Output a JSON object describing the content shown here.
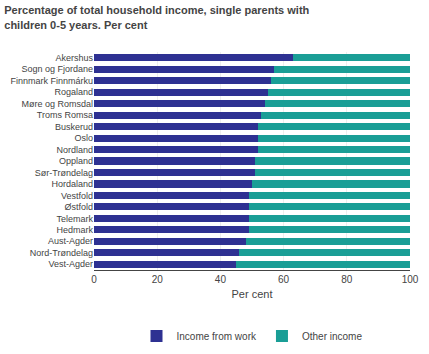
{
  "chart_data": {
    "type": "bar",
    "orientation": "horizontal",
    "stacked": true,
    "title": "Percentage of total household income, single parents with\nchildren 0-5 years. Per cent",
    "xlabel": "Per cent",
    "categories": [
      "Akershus",
      "Sogn og Fjordane",
      "Finnmark Finnmárku",
      "Rogaland",
      "Møre og Romsdal",
      "Troms Romsa",
      "Buskerud",
      "Oslo",
      "Nordland",
      "Oppland",
      "Sør-Trøndelag",
      "Hordaland",
      "Vestfold",
      "Østfold",
      "Telemark",
      "Hedmark",
      "Aust-Agder",
      "Nord-Trøndelag",
      "Vest-Agder"
    ],
    "series": [
      {
        "name": "Income from work",
        "color": "#2e3192",
        "values": [
          63,
          57,
          56,
          55,
          54,
          53,
          52,
          52,
          52,
          51,
          51,
          50,
          49,
          49,
          49,
          49,
          48,
          46,
          45
        ]
      },
      {
        "name": "Other income",
        "color": "#1a9e96",
        "values": [
          37,
          43,
          44,
          45,
          46,
          47,
          48,
          48,
          48,
          49,
          49,
          50,
          51,
          51,
          51,
          51,
          52,
          54,
          55
        ]
      }
    ],
    "xlim": [
      0,
      100
    ],
    "xticks": [
      0,
      20,
      40,
      60,
      80,
      100
    ],
    "grid": true,
    "legend": "bottom"
  }
}
